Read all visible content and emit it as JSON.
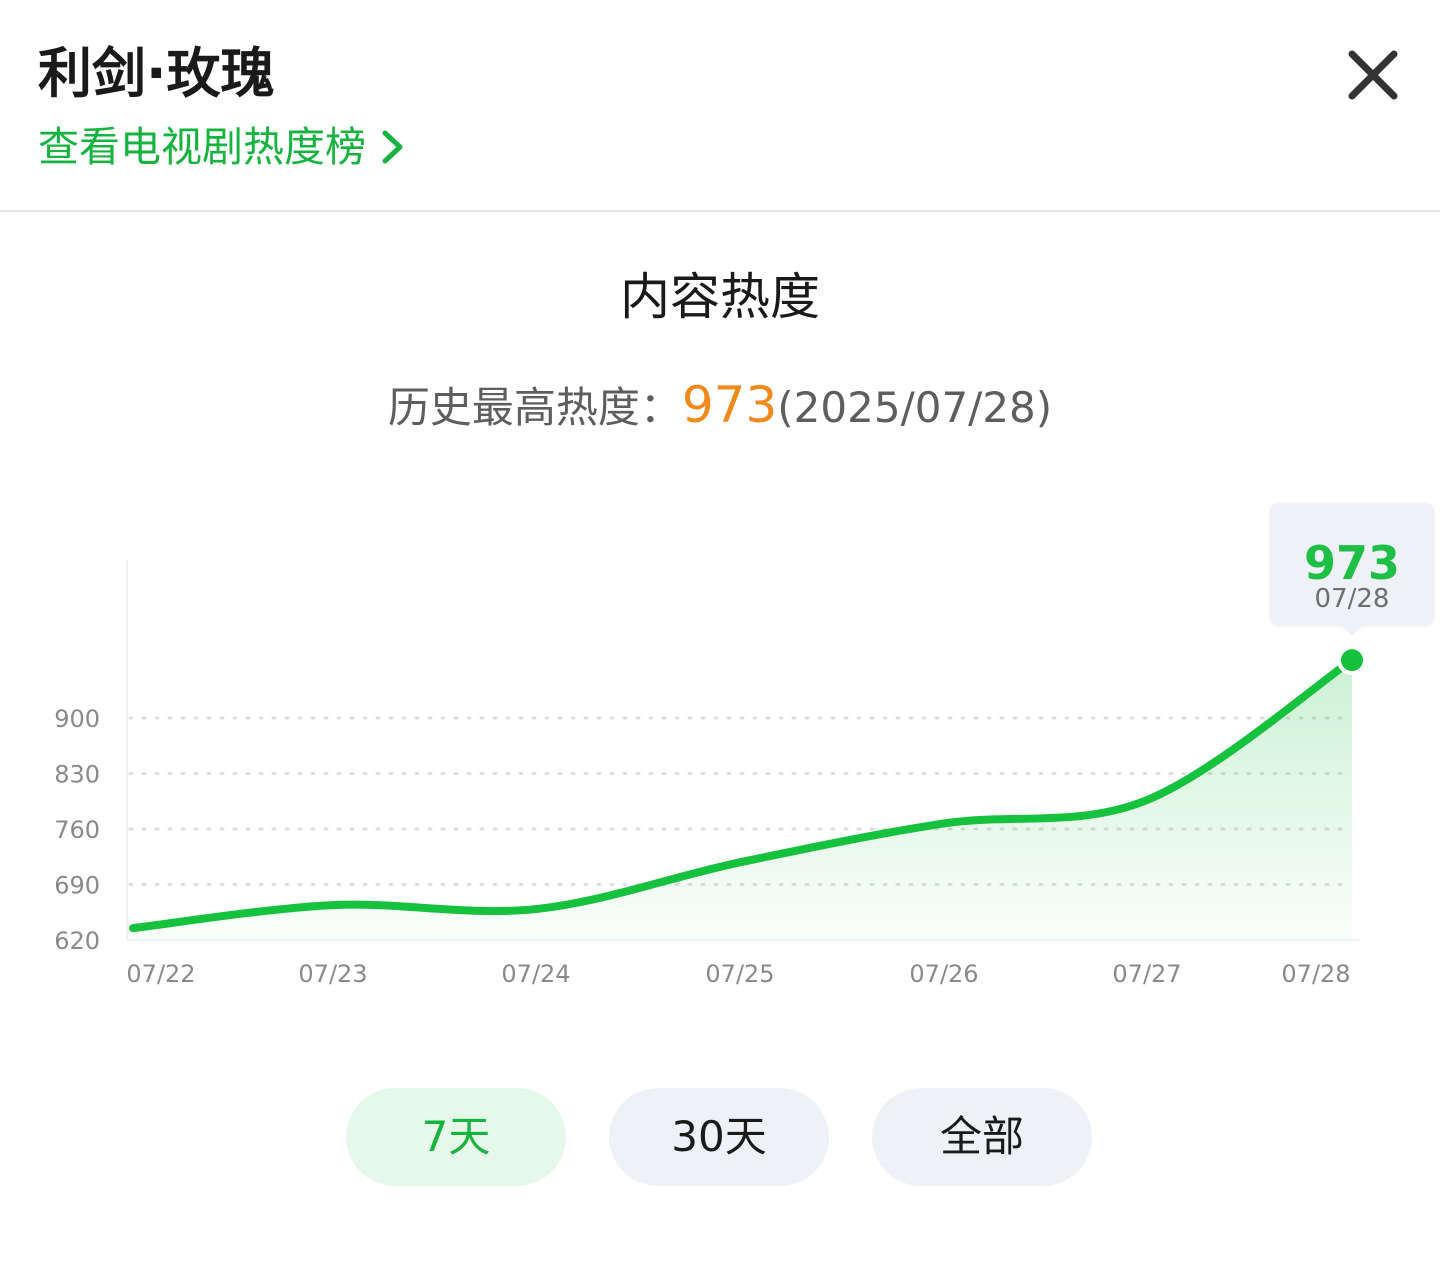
{
  "header": {
    "title": "利剑·玫瑰",
    "rank_link": "查看电视剧热度榜"
  },
  "section": {
    "title": "内容热度",
    "record_label": "历史最高热度：",
    "record_value": "973",
    "record_date": "(2025/07/28)"
  },
  "tooltip": {
    "value": "973",
    "date": "07/28"
  },
  "range_buttons": [
    {
      "label": "7天",
      "active": true
    },
    {
      "label": "30天",
      "active": false
    },
    {
      "label": "全部",
      "active": false
    }
  ],
  "colors": {
    "line": "#16c23d",
    "accent_green": "#16b33f",
    "peak_orange": "#f08a1c",
    "tooltip_bg": "#eef2f7"
  },
  "icons": {
    "close": "close-icon",
    "link_arrow": "chevron-right-icon"
  },
  "chart_data": {
    "type": "area",
    "title": "内容热度",
    "x": [
      "07/22",
      "07/23",
      "07/24",
      "07/25",
      "07/26",
      "07/27",
      "07/28"
    ],
    "y_ticks": [
      620,
      690,
      760,
      830,
      900
    ],
    "ylim": [
      620,
      973
    ],
    "grid": "horizontal-dotted",
    "series": [
      {
        "values": [
          635,
          664,
          659,
          718,
          767,
          796,
          973
        ]
      }
    ],
    "highlight": {
      "x": "07/28",
      "value": 973
    }
  }
}
